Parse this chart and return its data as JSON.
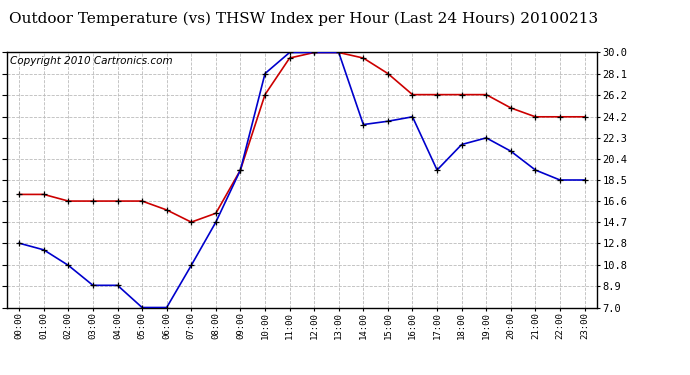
{
  "title": "Outdoor Temperature (vs) THSW Index per Hour (Last 24 Hours) 20100213",
  "copyright": "Copyright 2010 Cartronics.com",
  "hours": [
    "00:00",
    "01:00",
    "02:00",
    "03:00",
    "04:00",
    "05:00",
    "06:00",
    "07:00",
    "08:00",
    "09:00",
    "10:00",
    "11:00",
    "12:00",
    "13:00",
    "14:00",
    "15:00",
    "16:00",
    "17:00",
    "18:00",
    "19:00",
    "20:00",
    "21:00",
    "22:00",
    "23:00"
  ],
  "temp_blue": [
    12.8,
    12.2,
    10.8,
    9.0,
    9.0,
    7.0,
    7.0,
    10.8,
    14.7,
    19.4,
    28.1,
    30.0,
    30.0,
    30.0,
    23.5,
    23.8,
    24.2,
    19.4,
    21.7,
    22.3,
    21.1,
    19.4,
    18.5,
    18.5
  ],
  "thsw_red": [
    17.2,
    17.2,
    16.6,
    16.6,
    16.6,
    16.6,
    15.8,
    14.7,
    15.5,
    19.4,
    26.2,
    29.5,
    30.0,
    30.0,
    29.5,
    28.1,
    26.2,
    26.2,
    26.2,
    26.2,
    25.0,
    24.2,
    24.2,
    24.2
  ],
  "y_ticks": [
    7.0,
    8.9,
    10.8,
    12.8,
    14.7,
    16.6,
    18.5,
    20.4,
    22.3,
    24.2,
    26.2,
    28.1,
    30.0
  ],
  "ylim": [
    7.0,
    30.0
  ],
  "bg_color": "#ffffff",
  "plot_bg": "#ffffff",
  "grid_color": "#bbbbbb",
  "line_color_blue": "#0000cc",
  "line_color_red": "#cc0000",
  "marker_color": "#000000",
  "title_fontsize": 11,
  "copyright_fontsize": 7.5
}
